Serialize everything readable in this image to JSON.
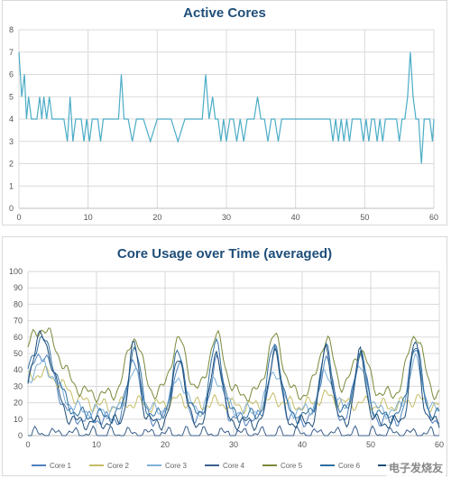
{
  "chart_data": [
    {
      "type": "line",
      "title": "Active Cores",
      "xlabel": "",
      "ylabel": "",
      "xlim": [
        0,
        60
      ],
      "ylim": [
        0,
        8
      ],
      "xticks": [
        "0",
        "10",
        "20",
        "30",
        "40",
        "50",
        "60"
      ],
      "yticks": [
        "0",
        "1",
        "2",
        "3",
        "4",
        "5",
        "6",
        "7",
        "8"
      ],
      "grid": true,
      "series": [
        {
          "color": "#4bacc6",
          "x": [
            0,
            0.4,
            0.8,
            1.1,
            1.4,
            1.8,
            2.2,
            2.6,
            3,
            3.3,
            3.6,
            4,
            4.4,
            4.8,
            5.2,
            5.6,
            6,
            6.5,
            7,
            7.4,
            7.8,
            8.2,
            8.6,
            9,
            9.4,
            9.8,
            10.2,
            10.6,
            11,
            11.4,
            11.8,
            12.2,
            12.8,
            13.4,
            14,
            14.4,
            14.8,
            15.2,
            15.8,
            16.4,
            17,
            18,
            19,
            20,
            21,
            22,
            23,
            24,
            25,
            26,
            26.5,
            27,
            27.5,
            28,
            28.4,
            28.8,
            29.2,
            29.6,
            30,
            30.5,
            31,
            31.5,
            32,
            32.5,
            33,
            33.5,
            34,
            34.5,
            35,
            35.5,
            36,
            36.5,
            37,
            37.5,
            38,
            38.5,
            39,
            39.5,
            40,
            40.5,
            41,
            41.5,
            42,
            42.5,
            43,
            43.5,
            44,
            44.5,
            45,
            45.4,
            45.8,
            46.2,
            46.6,
            47,
            47.4,
            47.8,
            48.2,
            48.6,
            49,
            49.4,
            49.8,
            50.2,
            50.6,
            51,
            51.4,
            51.8,
            52.2,
            52.6,
            53,
            53.4,
            53.8,
            54.2,
            54.6,
            55,
            55.4,
            55.8,
            56.2,
            56.6,
            57,
            57.4,
            57.8,
            58.2,
            58.6,
            59,
            59.4,
            59.8,
            60
          ],
          "values": [
            7,
            5,
            6,
            4,
            5,
            4,
            4,
            4,
            5,
            4,
            5,
            4,
            5,
            4,
            4,
            4,
            4,
            4,
            3,
            5,
            3,
            4,
            4,
            4,
            3,
            4,
            3,
            4,
            4,
            4,
            3,
            4,
            4,
            4,
            4,
            4,
            6,
            4,
            4,
            3,
            4,
            4,
            3,
            4,
            4,
            4,
            3,
            4,
            4,
            4,
            4,
            6,
            4,
            5,
            4,
            4,
            3,
            4,
            3,
            4,
            4,
            3,
            4,
            3,
            4,
            4,
            4,
            5,
            4,
            4,
            3,
            4,
            4,
            3,
            4,
            4,
            4,
            4,
            4,
            4,
            4,
            4,
            4,
            4,
            4,
            4,
            4,
            4,
            4,
            3,
            4,
            3,
            4,
            3,
            4,
            3,
            4,
            4,
            4,
            4,
            3,
            4,
            3,
            4,
            4,
            3,
            4,
            3,
            4,
            4,
            4,
            4,
            4,
            3,
            4,
            4,
            5,
            7,
            5,
            4,
            4,
            2,
            4,
            4,
            4,
            3,
            4
          ]
        }
      ]
    },
    {
      "type": "line",
      "title": "Core Usage over Time (averaged)",
      "xlabel": "",
      "ylabel": "",
      "xlim": [
        0,
        60
      ],
      "ylim": [
        0,
        100
      ],
      "xticks": [
        "0",
        "10",
        "20",
        "30",
        "40",
        "50",
        "60"
      ],
      "yticks": [
        "0",
        "10",
        "20",
        "30",
        "40",
        "50",
        "60",
        "70",
        "80",
        "90",
        "100"
      ],
      "grid": true,
      "legend_position": "bottom",
      "peak_centers": [
        2,
        15.5,
        22,
        27.5,
        36,
        43.5,
        48.5,
        56.5
      ],
      "series": [
        {
          "name": "Core 1",
          "color": "#4f81bd",
          "peaks": [
            50,
            48,
            44,
            46,
            50,
            48,
            52,
            56
          ],
          "base": 10,
          "width": 1.2
        },
        {
          "name": "Core 2",
          "color": "#c4bd67",
          "peaks": [
            38,
            20,
            22,
            20,
            22,
            24,
            20,
            22
          ],
          "base": 18,
          "width": 2.0
        },
        {
          "name": "Core 3",
          "color": "#7eb0d8",
          "peaks": [
            43,
            38,
            35,
            35,
            40,
            38,
            40,
            45
          ],
          "base": 15,
          "width": 1.4
        },
        {
          "name": "Core 4",
          "color": "#3a5f8c",
          "peaks": [
            0,
            0,
            0,
            0,
            0,
            0,
            0,
            0
          ],
          "base": 1,
          "width": 1.0
        },
        {
          "name": "Core 5",
          "color": "#7a8a3a",
          "peaks": [
            65,
            60,
            58,
            60,
            60,
            58,
            52,
            62
          ],
          "base": 25,
          "width": 1.6
        },
        {
          "name": "Core 6",
          "color": "#2f6f9f",
          "peaks": [
            58,
            52,
            50,
            56,
            56,
            52,
            48,
            54
          ],
          "base": 12,
          "width": 1.3
        },
        {
          "name": "Core 7",
          "color": "#1f4e79",
          "peaks": [
            60,
            55,
            50,
            52,
            54,
            54,
            50,
            56
          ],
          "base": 8,
          "width": 1.1
        }
      ]
    }
  ],
  "watermark": "电子发烧友"
}
